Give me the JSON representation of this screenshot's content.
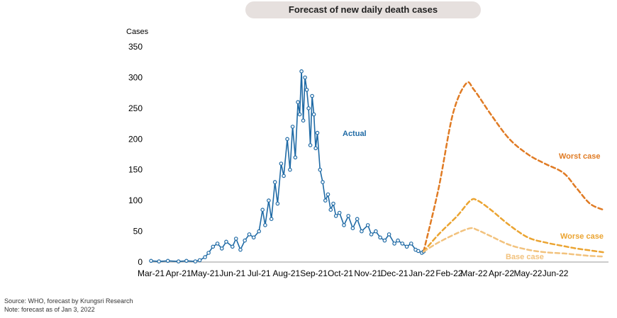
{
  "chart_data": {
    "type": "line",
    "title": "Forecast of new daily death cases",
    "ylabel": "Cases",
    "ylim": [
      0,
      350
    ],
    "yticks": [
      0,
      50,
      100,
      150,
      200,
      250,
      300,
      350
    ],
    "xlim": [
      "2021-03-01",
      "2022-07-31"
    ],
    "xticks": [
      {
        "date": "2021-03-01",
        "label": "Mar-21"
      },
      {
        "date": "2021-04-01",
        "label": "Apr-21"
      },
      {
        "date": "2021-05-01",
        "label": "May-21"
      },
      {
        "date": "2021-06-01",
        "label": "Jun-21"
      },
      {
        "date": "2021-07-01",
        "label": "Jul-21"
      },
      {
        "date": "2021-08-01",
        "label": "Aug-21"
      },
      {
        "date": "2021-09-01",
        "label": "Sep-21"
      },
      {
        "date": "2021-10-01",
        "label": "Oct-21"
      },
      {
        "date": "2021-11-01",
        "label": "Nov-21"
      },
      {
        "date": "2021-12-01",
        "label": "Dec-21"
      },
      {
        "date": "2022-01-01",
        "label": "Jan-22"
      },
      {
        "date": "2022-02-01",
        "label": "Feb-22"
      },
      {
        "date": "2022-03-01",
        "label": "Mar-22"
      },
      {
        "date": "2022-04-01",
        "label": "Apr-22"
      },
      {
        "date": "2022-05-01",
        "label": "May-22"
      },
      {
        "date": "2022-06-01",
        "label": "Jun-22"
      }
    ],
    "grid": false,
    "series": [
      {
        "name": "Actual",
        "color": "#1f6aa5",
        "style": "solid-with-markers",
        "x": [
          "2021-03-01",
          "2021-03-10",
          "2021-03-20",
          "2021-04-01",
          "2021-04-10",
          "2021-04-20",
          "2021-04-25",
          "2021-05-01",
          "2021-05-05",
          "2021-05-10",
          "2021-05-15",
          "2021-05-20",
          "2021-05-25",
          "2021-06-01",
          "2021-06-05",
          "2021-06-10",
          "2021-06-15",
          "2021-06-20",
          "2021-06-25",
          "2021-07-01",
          "2021-07-05",
          "2021-07-08",
          "2021-07-12",
          "2021-07-15",
          "2021-07-19",
          "2021-07-22",
          "2021-07-26",
          "2021-07-29",
          "2021-08-02",
          "2021-08-05",
          "2021-08-08",
          "2021-08-11",
          "2021-08-14",
          "2021-08-16",
          "2021-08-18",
          "2021-08-20",
          "2021-08-22",
          "2021-08-24",
          "2021-08-26",
          "2021-08-28",
          "2021-08-30",
          "2021-09-01",
          "2021-09-03",
          "2021-09-05",
          "2021-09-08",
          "2021-09-11",
          "2021-09-14",
          "2021-09-17",
          "2021-09-20",
          "2021-09-23",
          "2021-09-26",
          "2021-09-30",
          "2021-10-05",
          "2021-10-10",
          "2021-10-15",
          "2021-10-20",
          "2021-10-25",
          "2021-11-01",
          "2021-11-05",
          "2021-11-10",
          "2021-11-15",
          "2021-11-20",
          "2021-11-25",
          "2021-12-01",
          "2021-12-05",
          "2021-12-10",
          "2021-12-15",
          "2021-12-20",
          "2021-12-25",
          "2021-12-28",
          "2022-01-01",
          "2022-01-03"
        ],
        "values": [
          2,
          1,
          2,
          1,
          2,
          1,
          3,
          8,
          15,
          25,
          30,
          22,
          33,
          25,
          38,
          20,
          35,
          45,
          40,
          50,
          85,
          60,
          100,
          70,
          130,
          95,
          160,
          140,
          200,
          150,
          220,
          170,
          260,
          240,
          310,
          230,
          300,
          280,
          250,
          190,
          270,
          240,
          185,
          210,
          150,
          130,
          100,
          110,
          85,
          95,
          75,
          80,
          60,
          75,
          55,
          70,
          50,
          60,
          45,
          50,
          40,
          35,
          45,
          30,
          35,
          30,
          25,
          30,
          20,
          18,
          15,
          17
        ]
      },
      {
        "name": "Worst case",
        "color": "#e07b24",
        "style": "dashed",
        "x": [
          "2022-01-03",
          "2022-01-20",
          "2022-02-05",
          "2022-02-20",
          "2022-03-01",
          "2022-03-20",
          "2022-04-10",
          "2022-05-01",
          "2022-05-20",
          "2022-06-10",
          "2022-06-25",
          "2022-07-10",
          "2022-07-25"
        ],
        "values": [
          17,
          120,
          240,
          290,
          280,
          240,
          200,
          175,
          160,
          145,
          120,
          95,
          85
        ]
      },
      {
        "name": "Worse case",
        "color": "#eba431",
        "style": "dashed",
        "x": [
          "2022-01-03",
          "2022-01-20",
          "2022-02-10",
          "2022-02-25",
          "2022-03-05",
          "2022-03-20",
          "2022-04-10",
          "2022-05-01",
          "2022-05-20",
          "2022-06-10",
          "2022-06-25",
          "2022-07-10",
          "2022-07-25"
        ],
        "values": [
          17,
          45,
          75,
          100,
          100,
          85,
          60,
          40,
          32,
          26,
          22,
          19,
          16
        ]
      },
      {
        "name": "Base case",
        "color": "#f2c27d",
        "style": "dashed",
        "x": [
          "2022-01-03",
          "2022-01-20",
          "2022-02-10",
          "2022-02-25",
          "2022-03-05",
          "2022-03-20",
          "2022-04-10",
          "2022-05-01",
          "2022-05-20",
          "2022-06-10",
          "2022-06-25",
          "2022-07-10",
          "2022-07-25"
        ],
        "values": [
          17,
          32,
          47,
          55,
          52,
          42,
          28,
          20,
          16,
          14,
          12,
          10,
          9
        ]
      }
    ]
  },
  "footnotes": {
    "source": "Source: WHO, forecast by Krungsri Research",
    "note": "Note: forecast as of Jan 3, 2022"
  }
}
